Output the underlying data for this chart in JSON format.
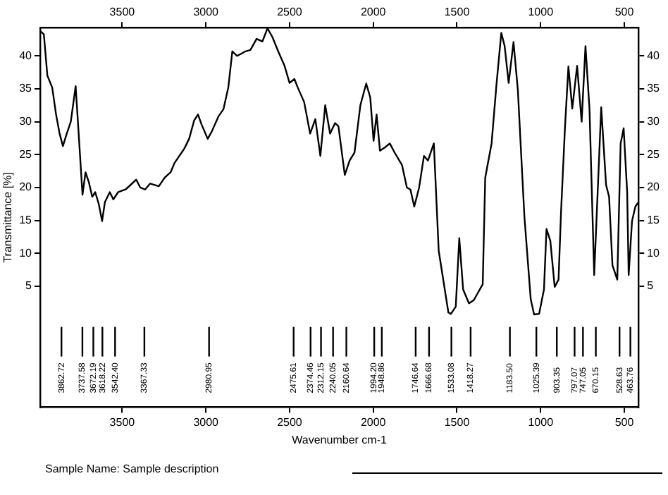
{
  "chart_data": {
    "type": "line",
    "xlabel": "Wavenumber cm-1",
    "ylabel": "Transmittance [%]",
    "color": "#000000",
    "grid": false,
    "legend": false,
    "marker": "none",
    "line_style": "solid",
    "xlim": [
      3990,
      415
    ],
    "xticks": [
      3500,
      3000,
      2500,
      2000,
      1500,
      1000,
      500
    ],
    "x2lim": [
      3990,
      415
    ],
    "x2ticks": [
      3500,
      3000,
      2500,
      2000,
      1500,
      1000,
      500
    ],
    "ylim": [
      -13.4,
      44.3
    ],
    "yticks": [
      5,
      10,
      15,
      20,
      25,
      30,
      35,
      40
    ],
    "y2lim": [
      -13.4,
      44.3
    ],
    "y2ticks": [
      5,
      10,
      15,
      20,
      25,
      30,
      35,
      40
    ],
    "x": [
      3990,
      3968,
      3947,
      3918,
      3895,
      3874,
      3854,
      3831,
      3807,
      3778,
      3758,
      3737,
      3719,
      3699,
      3679,
      3661,
      3640,
      3620,
      3603,
      3574,
      3553,
      3524,
      3480,
      3416,
      3392,
      3363,
      3333,
      3281,
      3246,
      3211,
      3188,
      3129,
      3100,
      3070,
      3047,
      3026,
      2989,
      2965,
      2925,
      2895,
      2866,
      2842,
      2813,
      2763,
      2734,
      2697,
      2662,
      2632,
      2603,
      2568,
      2530,
      2500,
      2471,
      2451,
      2413,
      2377,
      2346,
      2316,
      2287,
      2258,
      2228,
      2208,
      2170,
      2141,
      2112,
      2077,
      2042,
      2018,
      1998,
      1980,
      1960,
      1930,
      1901,
      1872,
      1828,
      1799,
      1778,
      1755,
      1726,
      1697,
      1673,
      1638,
      1609,
      1551,
      1536,
      1507,
      1486,
      1463,
      1428,
      1399,
      1346,
      1331,
      1293,
      1264,
      1235,
      1215,
      1191,
      1162,
      1136,
      1097,
      1059,
      1039,
      1009,
      980,
      965,
      942,
      916,
      893,
      878,
      855,
      834,
      811,
      782,
      755,
      732,
      708,
      680,
      638,
      609,
      591,
      571,
      542,
      522,
      504,
      483,
      474,
      454,
      434,
      418
    ],
    "values": [
      43.8,
      43.3,
      37.0,
      35.2,
      31.1,
      28.2,
      26.3,
      28.2,
      30.0,
      35.4,
      27.4,
      18.9,
      22.3,
      20.8,
      18.6,
      19.3,
      17.5,
      14.9,
      17.8,
      19.3,
      18.2,
      19.3,
      19.7,
      21.2,
      20.0,
      19.7,
      20.6,
      20.2,
      21.5,
      22.3,
      23.7,
      25.9,
      27.4,
      30.2,
      31.1,
      29.6,
      27.4,
      28.5,
      30.8,
      31.9,
      35.2,
      40.7,
      40.0,
      40.7,
      40.9,
      42.6,
      42.2,
      44.2,
      42.9,
      40.7,
      38.5,
      35.9,
      36.5,
      35.2,
      33.0,
      28.2,
      30.4,
      24.8,
      32.5,
      28.2,
      29.8,
      29.3,
      21.9,
      24.1,
      25.3,
      32.5,
      35.8,
      33.7,
      27.1,
      31.1,
      25.6,
      26.1,
      26.7,
      25.3,
      23.4,
      20.0,
      19.7,
      17.1,
      20.0,
      24.8,
      24.1,
      26.7,
      10.4,
      1.0,
      0.8,
      1.9,
      12.3,
      4.5,
      2.4,
      2.9,
      5.3,
      21.5,
      26.7,
      35.6,
      43.5,
      41.5,
      35.9,
      42.1,
      34.8,
      15.6,
      3.0,
      0.7,
      0.8,
      4.5,
      13.7,
      11.9,
      4.9,
      6.0,
      16.3,
      28.9,
      38.4,
      32.0,
      38.5,
      30.0,
      41.5,
      31.9,
      6.7,
      32.2,
      20.4,
      18.6,
      8.2,
      6.0,
      26.7,
      29.0,
      19.3,
      6.7,
      14.9,
      17.1,
      17.7
    ],
    "ref_lines": [
      {
        "axis": "x",
        "value": 3862.72,
        "label": "3862.72"
      },
      {
        "axis": "x",
        "value": 3737.58,
        "label": "3737.58"
      },
      {
        "axis": "x",
        "value": 3672.19,
        "label": "3672.19"
      },
      {
        "axis": "x",
        "value": 3618.22,
        "label": "3618.22"
      },
      {
        "axis": "x",
        "value": 3542.4,
        "label": "3542.40"
      },
      {
        "axis": "x",
        "value": 3367.33,
        "label": "3367.33"
      },
      {
        "axis": "x",
        "value": 2980.95,
        "label": "2980.95"
      },
      {
        "axis": "x",
        "value": 2475.61,
        "label": "2475.61"
      },
      {
        "axis": "x",
        "value": 2374.46,
        "label": "2374.46"
      },
      {
        "axis": "x",
        "value": 2312.15,
        "label": "2312.15"
      },
      {
        "axis": "x",
        "value": 2240.05,
        "label": "2240.05"
      },
      {
        "axis": "x",
        "value": 2160.64,
        "label": "2160.64"
      },
      {
        "axis": "x",
        "value": 1994.2,
        "label": "1994.20"
      },
      {
        "axis": "x",
        "value": 1948.86,
        "label": "1948.86"
      },
      {
        "axis": "x",
        "value": 1746.64,
        "label": "1746.64"
      },
      {
        "axis": "x",
        "value": 1666.68,
        "label": "1666.68"
      },
      {
        "axis": "x",
        "value": 1533.08,
        "label": "1533.08"
      },
      {
        "axis": "x",
        "value": 1418.27,
        "label": "1418.27"
      },
      {
        "axis": "x",
        "value": 1183.5,
        "label": "1183.50"
      },
      {
        "axis": "x",
        "value": 1025.39,
        "label": "1025.39"
      },
      {
        "axis": "x",
        "value": 903.35,
        "label": "903.35"
      },
      {
        "axis": "x",
        "value": 797.07,
        "label": "797.07"
      },
      {
        "axis": "x",
        "value": 747.05,
        "label": "747.05"
      },
      {
        "axis": "x",
        "value": 670.15,
        "label": "670.15"
      },
      {
        "axis": "x",
        "value": 528.63,
        "label": "528.63"
      },
      {
        "axis": "x",
        "value": 463.76,
        "label": "463.76"
      }
    ],
    "annotations": [
      "Sample Name: Sample description"
    ]
  }
}
